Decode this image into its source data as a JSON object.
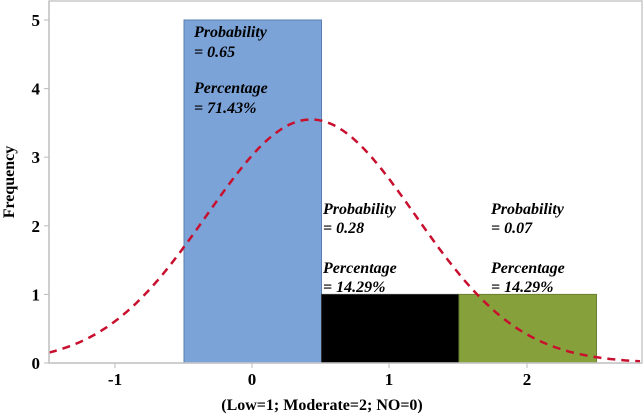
{
  "chart_data": {
    "type": "bar",
    "title": "",
    "xlabel": "(Low=1; Moderate=2; NO=0)",
    "ylabel": "Frequency",
    "categories": [
      "0",
      "1",
      "2"
    ],
    "x_ticks": [
      "-1",
      "0",
      "1",
      "2"
    ],
    "y_ticks": [
      "0",
      "1",
      "2",
      "3",
      "4",
      "5"
    ],
    "xlim": [
      -1.42,
      2.9
    ],
    "ylim": [
      0,
      5.25
    ],
    "grid": false,
    "series": [
      {
        "name": "Frequency",
        "values": [
          5,
          1,
          1
        ],
        "colors": [
          "#7ba3d8",
          "#000000",
          "#86a03c"
        ]
      }
    ],
    "overlay": {
      "type": "normal-curve",
      "style": "dashed",
      "color": "#c8102e",
      "mean": 0.43,
      "peak": 3.55
    },
    "annotations": [
      {
        "bar": "0",
        "probability_label": "Probability",
        "probability_value": "= 0.65",
        "percentage_label": "Percentage",
        "percentage_value": "= 71.43%"
      },
      {
        "bar": "1",
        "probability_label": "Probability",
        "probability_value": "= 0.28",
        "percentage_label": "Percentage",
        "percentage_value": "= 14.29%"
      },
      {
        "bar": "2",
        "probability_label": "Probability",
        "probability_value": "= 0.07",
        "percentage_label": "Percentage",
        "percentage_value": "= 14.29%"
      }
    ]
  }
}
